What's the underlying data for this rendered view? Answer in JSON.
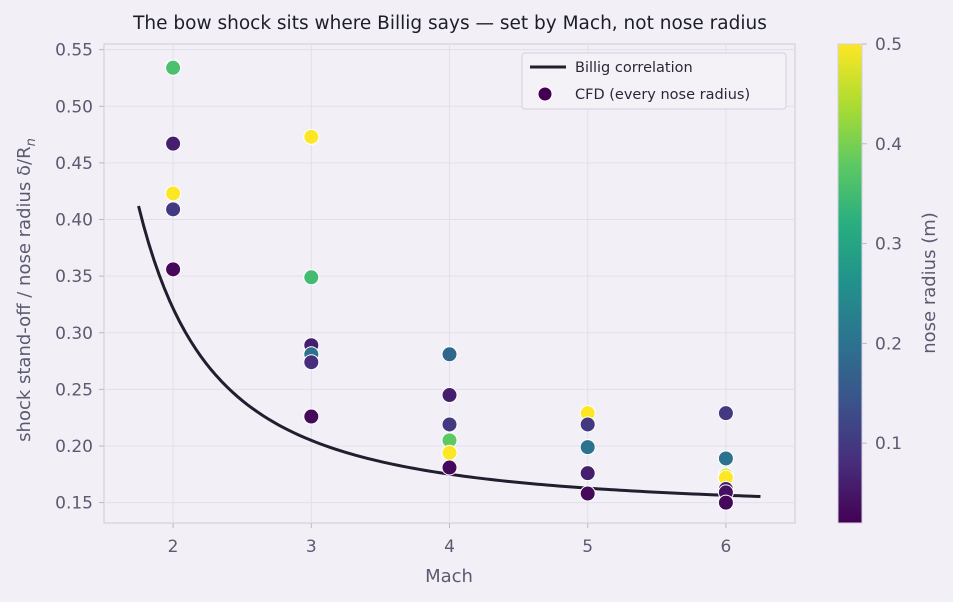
{
  "chart_data": {
    "type": "scatter",
    "title": "The bow shock sits where Billig says — set by Mach, not nose radius",
    "xlabel": "Mach",
    "ylabel": "shock stand-off / nose radius  δ/R",
    "ylabel_subscript": "n",
    "xlim": [
      1.5,
      6.5
    ],
    "ylim": [
      0.132,
      0.555
    ],
    "xticks": [
      "2",
      "3",
      "4",
      "5",
      "6"
    ],
    "yticks": [
      "0.15",
      "0.20",
      "0.25",
      "0.30",
      "0.35",
      "0.40",
      "0.45",
      "0.50",
      "0.55"
    ],
    "grid": true,
    "legend": {
      "placement": "top-right",
      "entries": [
        "Billig correlation",
        "CFD (every nose radius)"
      ]
    },
    "colorbar": {
      "label": "nose radius (m)",
      "range": [
        0.02,
        0.5
      ],
      "ticks": [
        "0.1",
        "0.2",
        "0.3",
        "0.4",
        "0.5"
      ],
      "colormap": "viridis"
    },
    "series": [
      {
        "name": "Billig correlation",
        "kind": "line",
        "color": "#221e30",
        "formula": "0.143*exp(3.24/M^2)",
        "x_range": [
          1.75,
          6.25
        ]
      },
      {
        "name": "CFD (every nose radius)",
        "kind": "scatter",
        "points": [
          {
            "x": 2,
            "y": 0.535,
            "r": 0.33
          },
          {
            "x": 2,
            "y": 0.534,
            "r": 0.36
          },
          {
            "x": 2,
            "y": 0.467,
            "r": 0.06
          },
          {
            "x": 2,
            "y": 0.423,
            "r": 0.5
          },
          {
            "x": 2,
            "y": 0.409,
            "r": 0.1
          },
          {
            "x": 2,
            "y": 0.356,
            "r": 0.03
          },
          {
            "x": 3,
            "y": 0.473,
            "r": 0.5
          },
          {
            "x": 3,
            "y": 0.349,
            "r": 0.35
          },
          {
            "x": 3,
            "y": 0.289,
            "r": 0.06
          },
          {
            "x": 3,
            "y": 0.281,
            "r": 0.2
          },
          {
            "x": 3,
            "y": 0.274,
            "r": 0.08
          },
          {
            "x": 3,
            "y": 0.226,
            "r": 0.03
          },
          {
            "x": 4,
            "y": 0.281,
            "r": 0.18
          },
          {
            "x": 4,
            "y": 0.245,
            "r": 0.06
          },
          {
            "x": 4,
            "y": 0.219,
            "r": 0.1
          },
          {
            "x": 4,
            "y": 0.205,
            "r": 0.38
          },
          {
            "x": 4,
            "y": 0.194,
            "r": 0.5
          },
          {
            "x": 4,
            "y": 0.181,
            "r": 0.03
          },
          {
            "x": 5,
            "y": 0.229,
            "r": 0.5
          },
          {
            "x": 5,
            "y": 0.219,
            "r": 0.1
          },
          {
            "x": 5,
            "y": 0.199,
            "r": 0.2
          },
          {
            "x": 5,
            "y": 0.176,
            "r": 0.06
          },
          {
            "x": 5,
            "y": 0.158,
            "r": 0.03
          },
          {
            "x": 6,
            "y": 0.229,
            "r": 0.1
          },
          {
            "x": 6,
            "y": 0.189,
            "r": 0.2
          },
          {
            "x": 6,
            "y": 0.174,
            "r": 0.47
          },
          {
            "x": 6,
            "y": 0.172,
            "r": 0.5
          },
          {
            "x": 6,
            "y": 0.162,
            "r": 0.06
          },
          {
            "x": 6,
            "y": 0.159,
            "r": 0.04
          },
          {
            "x": 6,
            "y": 0.15,
            "r": 0.03
          }
        ]
      }
    ]
  }
}
